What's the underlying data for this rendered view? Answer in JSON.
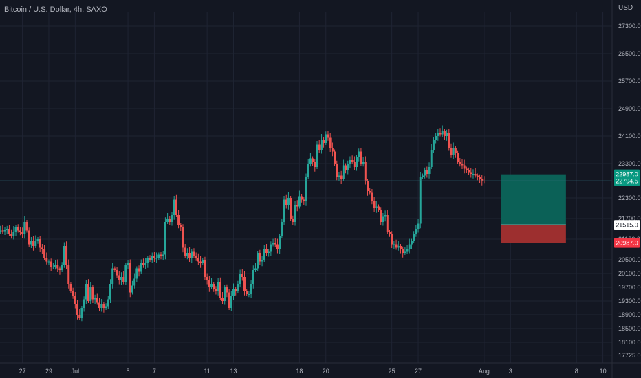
{
  "header": {
    "title": "Bitcoin / U.S. Dollar, 4h, SAXO",
    "currency": "USD"
  },
  "colors": {
    "background": "#131722",
    "grid": "#1f2433",
    "up": "#26a69a",
    "down": "#ef5350",
    "profit_zone": "#0b6157",
    "loss_zone": "#9d2f2f",
    "price_line": "#2f6f78",
    "axis_text": "#b2b5be"
  },
  "chart_data": {
    "type": "candlestick",
    "title": "Bitcoin / U.S. Dollar, 4h, SAXO",
    "ylabel": "USD",
    "ylim": [
      17500,
      27700
    ],
    "y_ticks": [
      "27300.0",
      "26500.0",
      "25700.0",
      "24900.0",
      "24100.0",
      "23300.0",
      "22300.0",
      "21700.0",
      "21100.0",
      "20500.0",
      "20100.0",
      "19700.0",
      "19300.0",
      "18900.0",
      "18500.0",
      "18100.0",
      "17725.0"
    ],
    "x_labels": [
      {
        "label": "27",
        "day": 0
      },
      {
        "label": "29",
        "day": 2
      },
      {
        "label": "Jul",
        "day": 4
      },
      {
        "label": "5",
        "day": 8
      },
      {
        "label": "7",
        "day": 10
      },
      {
        "label": "11",
        "day": 14
      },
      {
        "label": "13",
        "day": 16
      },
      {
        "label": "18",
        "day": 21
      },
      {
        "label": "20",
        "day": 23
      },
      {
        "label": "25",
        "day": 28
      },
      {
        "label": "27",
        "day": 30
      },
      {
        "label": "Aug",
        "day": 35
      },
      {
        "label": "3",
        "day": 37
      },
      {
        "label": "8",
        "day": 42
      },
      {
        "label": "10",
        "day": 44
      }
    ],
    "x_range_days": [
      -1.7,
      44.7
    ],
    "candle_start_day": -3.0,
    "candle_step_days": 0.16667,
    "closes": [
      21100,
      21150,
      21200,
      21180,
      21250,
      21280,
      21320,
      21300,
      21350,
      21330,
      21380,
      21400,
      21250,
      21200,
      21320,
      21450,
      21350,
      21300,
      21250,
      21600,
      21350,
      20950,
      21050,
      20900,
      21050,
      21100,
      20850,
      20800,
      20550,
      20450,
      20450,
      20300,
      20300,
      20350,
      20250,
      20200,
      20350,
      20900,
      20350,
      19800,
      19600,
      19450,
      19200,
      18900,
      18800,
      19100,
      19350,
      19800,
      19300,
      19700,
      19350,
      19400,
      19250,
      19100,
      19200,
      19100,
      19150,
      19350,
      19800,
      20250,
      20200,
      20050,
      19900,
      20000,
      19850,
      20350,
      20400,
      19550,
      19750,
      19950,
      20250,
      20150,
      20400,
      20350,
      20400,
      20550,
      20500,
      20600,
      20550,
      20550,
      20650,
      20600,
      20650,
      21600,
      21700,
      21600,
      21800,
      22250,
      21800,
      21500,
      21450,
      20850,
      20600,
      20700,
      20550,
      20750,
      20600,
      20550,
      20450,
      20400,
      20500,
      20000,
      19900,
      19700,
      19800,
      19650,
      19600,
      19850,
      19400,
      19300,
      19700,
      19550,
      19100,
      19450,
      19650,
      19600,
      19800,
      20100,
      20000,
      19600,
      19500,
      19500,
      19800,
      20200,
      20250,
      20700,
      20450,
      20500,
      20800,
      20700,
      20750,
      20950,
      21000,
      20950,
      20800,
      21200,
      21600,
      22250,
      22100,
      22300,
      21700,
      21600,
      22100,
      22050,
      22350,
      22250,
      22200,
      22900,
      23300,
      23450,
      23350,
      23200,
      23850,
      23700,
      24000,
      23900,
      24150,
      24050,
      23750,
      23650,
      23300,
      22900,
      22950,
      22850,
      23250,
      23100,
      23300,
      23400,
      23350,
      23200,
      23500,
      23650,
      23300,
      23350,
      22800,
      22500,
      22450,
      22200,
      22000,
      22050,
      21950,
      21600,
      21750,
      21800,
      21300,
      21250,
      20950,
      20950,
      20850,
      20900,
      20800,
      20700,
      20750,
      20800,
      20950,
      21050,
      21250,
      21400,
      21550,
      22900,
      22950,
      23100,
      23000,
      23200,
      23700,
      24000,
      24100,
      24200,
      24150,
      24250,
      24100,
      24200,
      23750,
      23550,
      23750,
      23600,
      23350,
      23300,
      23250,
      23150,
      23100,
      23050,
      23000,
      23000,
      22950,
      22900,
      22850,
      22800,
      22794.5
    ],
    "position": {
      "take_profit": 22987.0,
      "entry": 21515.0,
      "stop_loss": 20987.0,
      "start_day": 36.3,
      "end_day": 41.2
    },
    "price_labels": {
      "take_profit": "22987.0",
      "last_price": "22794.5",
      "entry": "21515.0",
      "stop_loss": "20987.0"
    }
  }
}
